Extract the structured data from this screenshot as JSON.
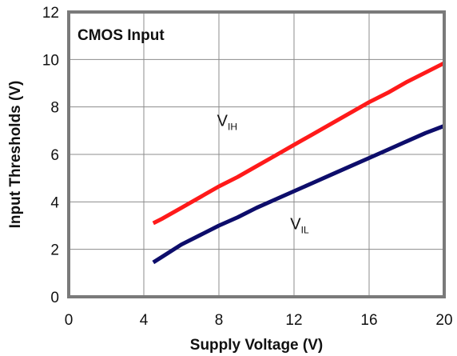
{
  "chart_data": {
    "type": "line",
    "title": "CMOS Input",
    "xlabel": "Supply Voltage (V)",
    "ylabel": "Input Thresholds (V)",
    "xlim": [
      0,
      20
    ],
    "ylim": [
      0,
      12
    ],
    "xticks": [
      0,
      4,
      8,
      12,
      16,
      20
    ],
    "yticks": [
      0,
      2,
      4,
      6,
      8,
      10,
      12
    ],
    "grid": true,
    "series": [
      {
        "name": "VIH",
        "label_main": "V",
        "label_sub": "IH",
        "color": "#ff1a1a",
        "x": [
          4.5,
          5,
          6,
          7,
          8,
          9,
          10,
          11,
          12,
          13,
          14,
          15,
          16,
          17,
          18,
          19,
          20
        ],
        "y": [
          3.1,
          3.3,
          3.75,
          4.2,
          4.65,
          5.05,
          5.5,
          5.95,
          6.4,
          6.85,
          7.3,
          7.75,
          8.2,
          8.6,
          9.05,
          9.45,
          9.85
        ]
      },
      {
        "name": "VIL",
        "label_main": "V",
        "label_sub": "IL",
        "color": "#0d0d6b",
        "x": [
          4.5,
          5,
          6,
          7,
          8,
          9,
          10,
          11,
          12,
          13,
          14,
          15,
          16,
          17,
          18,
          19,
          20
        ],
        "y": [
          1.45,
          1.7,
          2.2,
          2.6,
          3.0,
          3.35,
          3.75,
          4.1,
          4.45,
          4.8,
          5.15,
          5.5,
          5.85,
          6.2,
          6.55,
          6.9,
          7.2
        ]
      }
    ]
  }
}
